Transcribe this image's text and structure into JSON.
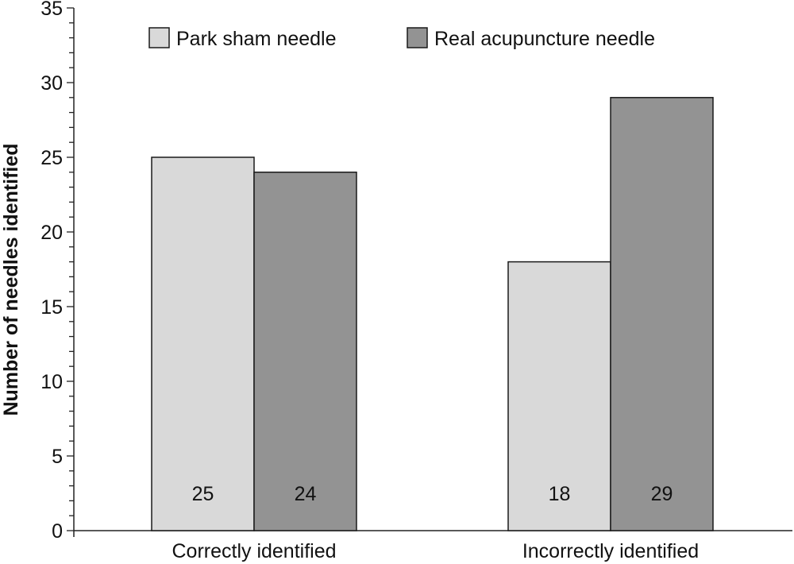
{
  "chart_data": {
    "type": "bar",
    "ylabel": "Number of needles identified",
    "xlabel": "",
    "ylim": [
      0,
      35
    ],
    "yticks": [
      0,
      5,
      10,
      15,
      20,
      25,
      30,
      35
    ],
    "minor_tick_step": 1,
    "grid": false,
    "legend_position": "top",
    "categories": [
      "Correctly identified",
      "Incorrectly identified"
    ],
    "series": [
      {
        "name": "Park sham needle",
        "color": "#d9d9d9",
        "values": [
          25,
          18
        ]
      },
      {
        "name": "Real acupuncture needle",
        "color": "#939393",
        "values": [
          24,
          29
        ]
      }
    ]
  }
}
